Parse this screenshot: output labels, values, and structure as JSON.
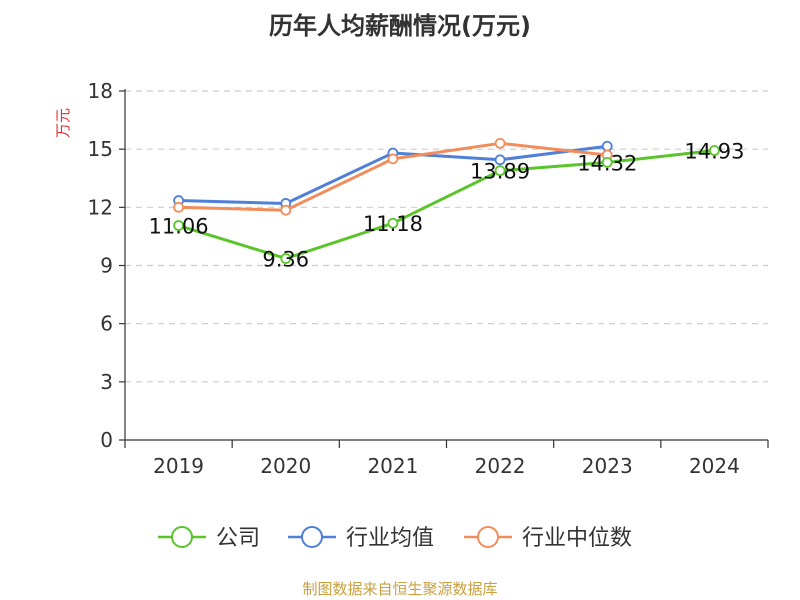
{
  "chart_data": {
    "type": "line",
    "title": "历年人均薪酬情况(万元)",
    "ylabel": "万元",
    "xlabel": "",
    "categories": [
      "2019",
      "2020",
      "2021",
      "2022",
      "2023",
      "2024"
    ],
    "ylim": [
      0,
      18
    ],
    "yticks": [
      0,
      3,
      6,
      9,
      12,
      15,
      18
    ],
    "grid": true,
    "legend_position": "bottom",
    "series": [
      {
        "name": "公司",
        "color": "#5bc42b",
        "values": [
          11.06,
          9.36,
          11.18,
          13.89,
          14.32,
          14.93
        ],
        "labels": [
          "11.06",
          "9.36",
          "11.18",
          "13.89",
          "14.32",
          "14.93"
        ]
      },
      {
        "name": "行业均值",
        "color": "#4f7fd9",
        "values": [
          12.35,
          12.2,
          14.8,
          14.45,
          15.15,
          null
        ]
      },
      {
        "name": "行业中位数",
        "color": "#f28c5a",
        "values": [
          12.0,
          11.85,
          14.5,
          15.3,
          14.7,
          null
        ]
      }
    ]
  },
  "source": "制图数据来自恒生聚源数据库"
}
